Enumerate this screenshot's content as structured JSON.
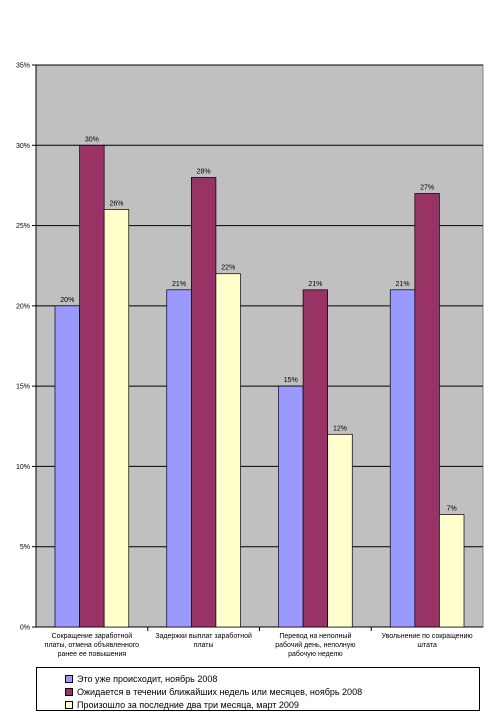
{
  "chart_data": {
    "type": "bar",
    "categories": [
      "Сокращение заработной платы, отмена объявленного ранее ее повышения",
      "Задержки выплат заработной платы",
      "Перевод на неполный рабочий день, неполную рабочую неделю",
      "Увольнение по сокращению штата"
    ],
    "category_lines": [
      [
        "Сокращение заработной",
        "платы, отмена объявленного",
        "ранее ее повышения"
      ],
      [
        "Задержки выплат заработной",
        "платы"
      ],
      [
        "Перевод на неполный",
        "рабочий день, неполную",
        "рабочую неделю"
      ],
      [
        "Увольнение по сокращению",
        "штата"
      ]
    ],
    "series": [
      {
        "name": "Это уже происходит, ноябрь 2008",
        "color": "#9999ff",
        "values": [
          20,
          21,
          15,
          21
        ]
      },
      {
        "name": "Ожидается в течении ближайших недель или месяцев, ноябрь 2008",
        "color": "#993366",
        "values": [
          30,
          28,
          21,
          27
        ]
      },
      {
        "name": "Произошло за последние два три месяца, март 2009",
        "color": "#ffffcc",
        "values": [
          26,
          22,
          12,
          7
        ]
      }
    ],
    "ylim": [
      0,
      35
    ],
    "yticks": [
      0,
      5,
      10,
      15,
      20,
      25,
      30,
      35
    ],
    "ytick_labels": [
      "0%",
      "5%",
      "10%",
      "15%",
      "20%",
      "25%",
      "30%",
      "35%"
    ],
    "value_suffix": "%",
    "grid": true,
    "plot_background": "#c0c0c0",
    "legend_placement": "bottom",
    "title": "",
    "xlabel": "",
    "ylabel": ""
  }
}
